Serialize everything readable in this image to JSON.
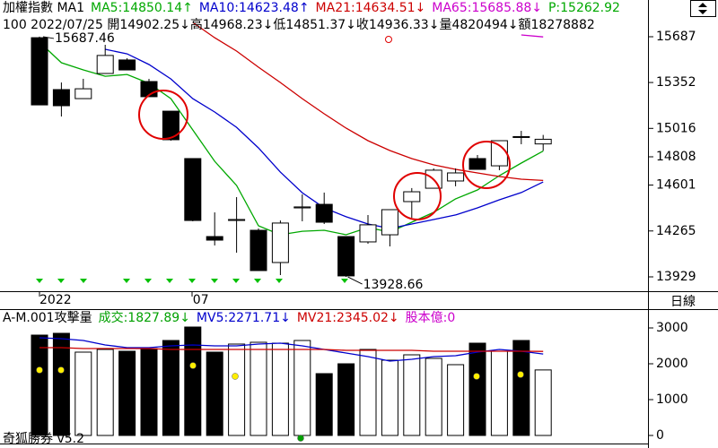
{
  "chart_data": [
    {
      "type": "candlestick",
      "header": [
        {
          "text": "加權指數 MA1",
          "color": "#000000"
        },
        {
          "text": "MA5:14850.14↑",
          "color": "#00a800"
        },
        {
          "text": "MA10:14623.48↑",
          "color": "#0000cc"
        },
        {
          "text": "MA21:14634.51↓",
          "color": "#cc0000"
        },
        {
          "text": "MA65:15685.88↓",
          "color": "#cc00cc"
        },
        {
          "text": "P:15262.92",
          "color": "#00a800"
        }
      ],
      "subheader": "100 2022/07/25 開14902.25↓高14968.23↓低14851.37↓收14936.33↓量4820494↓額18278882",
      "categories": [
        "2022",
        null,
        null,
        null,
        null,
        null,
        null,
        "07",
        null,
        null,
        null,
        null,
        null,
        null,
        null,
        null,
        null,
        null,
        null,
        null,
        null,
        null,
        null,
        null
      ],
      "open": [
        15680,
        15300,
        15234,
        15418,
        15517,
        15359,
        15142,
        14795,
        14224,
        14342,
        14270,
        14034,
        14434,
        14460,
        14224,
        14185,
        14237,
        14480,
        14578,
        14631,
        14795,
        14742,
        14952,
        14902.25
      ],
      "high": [
        15687.46,
        15352,
        15379,
        15628,
        15530,
        15379,
        15142,
        14795,
        14401,
        14513,
        14283,
        14342,
        14533,
        14546,
        14224,
        14382,
        14421,
        14579,
        14723,
        14723,
        14821,
        14926,
        14998,
        14968.23
      ],
      "low": [
        15188,
        15103,
        15234,
        15418,
        15444,
        15248,
        14926,
        14336,
        14159,
        14106,
        13975,
        13942,
        14336,
        14316,
        13928.66,
        14172,
        14152,
        14362,
        14578,
        14592,
        14716,
        14710,
        14900,
        14851.37
      ],
      "close": [
        15188,
        15182,
        15306,
        15550,
        15444,
        15248,
        14933,
        14342,
        14198,
        14349,
        13975,
        14323,
        14441,
        14329,
        13936,
        14310,
        14421,
        14552,
        14710,
        14690,
        14716,
        14926,
        14956,
        14936.33
      ],
      "high_labels": [
        "15687.46",
        null,
        null,
        null,
        null,
        null,
        null,
        null,
        null,
        null,
        null,
        null,
        null,
        null,
        null,
        null,
        null,
        null,
        null,
        null,
        null,
        null,
        null,
        null
      ],
      "low_labels": [
        null,
        null,
        null,
        null,
        null,
        null,
        null,
        null,
        null,
        null,
        null,
        null,
        null,
        null,
        "13928.66",
        null,
        null,
        null,
        null,
        null,
        null,
        null,
        null,
        null
      ],
      "up_color": "#ffffff",
      "down_color": "#000000",
      "series": [
        {
          "color": "#00a800",
          "values": [
            15648,
            15497,
            15444,
            15398,
            15411,
            15346,
            15234,
            15005,
            14775,
            14598,
            14303,
            14237,
            14263,
            14270,
            14237,
            14290,
            14257,
            14329,
            14401,
            14500,
            14565,
            14670,
            14762,
            14850.14
          ]
        },
        {
          "color": "#0000cc",
          "values": [
            null,
            null,
            null,
            15595,
            15562,
            15484,
            15378,
            15234,
            15136,
            15024,
            14873,
            14696,
            14545,
            14434,
            14369,
            14316,
            14283,
            14316,
            14349,
            14382,
            14434,
            14493,
            14546,
            14623.48
          ]
        },
        {
          "color": "#cc0000",
          "values": [
            null,
            null,
            null,
            null,
            null,
            null,
            null,
            15792,
            15680,
            15582,
            15464,
            15352,
            15234,
            15123,
            15018,
            14926,
            14854,
            14795,
            14749,
            14716,
            14690,
            14664,
            14644,
            14634.51
          ]
        },
        {
          "color": "#cc00cc",
          "values": [
            null,
            null,
            null,
            null,
            null,
            null,
            null,
            null,
            null,
            null,
            null,
            null,
            null,
            null,
            null,
            null,
            null,
            null,
            null,
            null,
            null,
            null,
            15700,
            15685.88
          ]
        }
      ],
      "ylim": [
        13824,
        15956
      ],
      "yticks": [
        15687,
        15352,
        15016,
        14808,
        14601,
        14265,
        13929
      ]
    },
    {
      "type": "bar",
      "header": [
        {
          "text": "A-M.001攻擊量",
          "color": "#000000"
        },
        {
          "text": "成交:1827.89↓",
          "color": "#00a000"
        },
        {
          "text": "MV5:2271.71↓",
          "color": "#0000cc"
        },
        {
          "text": "MV21:2345.02↓",
          "color": "#cc0000"
        },
        {
          "text": "股本億:0",
          "color": "#cc00cc"
        }
      ],
      "axis_label": "日線",
      "footer": "奇狐勝券 v5.2",
      "values": [
        2800,
        2850,
        2325,
        2400,
        2350,
        2425,
        2650,
        3025,
        2325,
        2550,
        2600,
        2575,
        2650,
        1725,
        2000,
        2400,
        2100,
        2250,
        2150,
        1975,
        2575,
        2350,
        2650,
        1827.89
      ],
      "colors": [
        "#000000",
        "#000000",
        "#ffffff",
        "#ffffff",
        "#000000",
        "#000000",
        "#000000",
        "#000000",
        "#000000",
        "#ffffff",
        "#ffffff",
        "#ffffff",
        "#ffffff",
        "#000000",
        "#000000",
        "#ffffff",
        "#ffffff",
        "#ffffff",
        "#ffffff",
        "#ffffff",
        "#000000",
        "#ffffff",
        "#000000",
        "#ffffff"
      ],
      "series": [
        {
          "color": "#0000cc",
          "values": [
            2725,
            2700,
            2650,
            2525,
            2450,
            2450,
            2500,
            2525,
            2500,
            2500,
            2550,
            2575,
            2500,
            2400,
            2300,
            2200,
            2075,
            2125,
            2200,
            2225,
            2325,
            2400,
            2350,
            2271.71
          ]
        },
        {
          "color": "#cc0000",
          "values": [
            2450,
            2450,
            2425,
            2425,
            2425,
            2425,
            2400,
            2400,
            2400,
            2400,
            2400,
            2400,
            2400,
            2400,
            2375,
            2375,
            2375,
            2375,
            2350,
            2350,
            2350,
            2350,
            2350,
            2345.02
          ]
        }
      ],
      "ylim": [
        -225,
        3525
      ],
      "yticks": [
        0,
        1000,
        2000,
        3000
      ]
    }
  ]
}
